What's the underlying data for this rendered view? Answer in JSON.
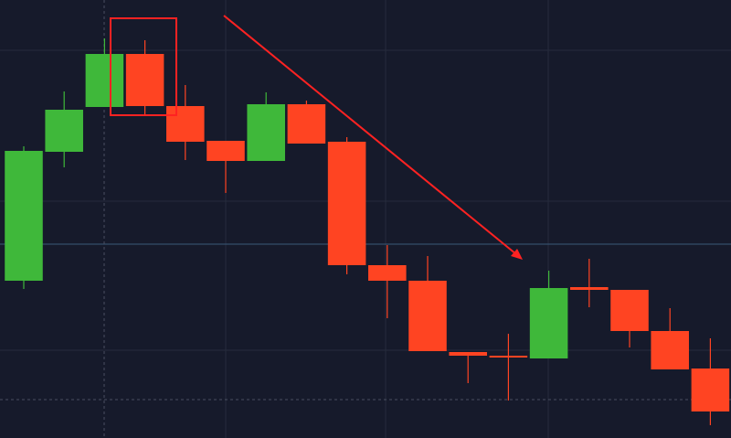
{
  "chart_data": {
    "type": "candlestick",
    "categories": [
      null,
      null,
      null,
      null,
      null,
      null,
      null,
      null,
      null,
      null,
      null,
      null,
      null,
      null,
      null,
      null,
      null,
      null
    ],
    "open": [
      17.2,
      31.3,
      36.2,
      42.0,
      36.3,
      32.5,
      30.3,
      36.5,
      32.4,
      18.9,
      17.2,
      9.4,
      9.0,
      8.7,
      16.5,
      16.2,
      11.7,
      7.6
    ],
    "high": [
      31.9,
      37.9,
      43.7,
      43.5,
      38.6,
      32.5,
      37.8,
      36.9,
      32.9,
      21.1,
      19.9,
      9.4,
      11.4,
      18.3,
      19.6,
      16.2,
      14.2,
      10.9
    ],
    "low": [
      16.3,
      29.6,
      36.2,
      35.4,
      30.4,
      26.8,
      30.3,
      32.2,
      17.9,
      13.1,
      9.5,
      6.0,
      4.1,
      8.7,
      14.3,
      9.9,
      7.5,
      1.4
    ],
    "close": [
      31.4,
      35.9,
      42.0,
      36.3,
      32.4,
      30.3,
      36.5,
      32.2,
      18.9,
      17.2,
      9.5,
      9.0,
      8.8,
      16.4,
      16.2,
      11.7,
      7.5,
      2.9
    ],
    "up_color": "#3fb83a",
    "down_color": "#ff4422",
    "ylim": [
      0,
      47.9
    ]
  }
}
